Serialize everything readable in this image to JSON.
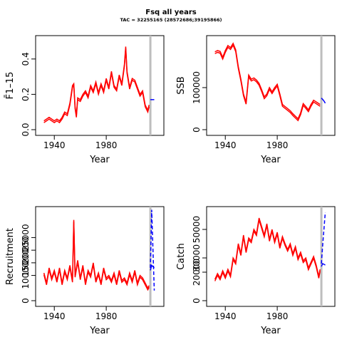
{
  "title": "Fsq all years",
  "subtitle": "TAC = 32255165 (28572686;39195866)",
  "colors": {
    "history": "#ff0000",
    "forecast": "#0000ff",
    "divider": "#bebebe",
    "axis": "#000000"
  },
  "chart_data": [
    {
      "id": "fbar",
      "type": "line",
      "xlabel": "Year",
      "ylabel": "F̄1–15",
      "xlim": [
        1930,
        2020
      ],
      "ylim": [
        0,
        0.5
      ],
      "xticks": [
        1940,
        1980
      ],
      "yticks": [
        "0.0",
        "0.2",
        "0.4"
      ],
      "divider_year": 2014,
      "series": [
        {
          "values_x": [
            1932,
            1934,
            1936,
            1938,
            1940,
            1942,
            1944,
            1946,
            1948,
            1950,
            1952,
            1954,
            1955,
            1956,
            1957,
            1958,
            1960,
            1962,
            1964,
            1966,
            1968,
            1970,
            1972,
            1974,
            1976,
            1978,
            1980,
            1982,
            1984,
            1986,
            1988,
            1990,
            1992,
            1994,
            1995,
            1996,
            1998,
            2000,
            2002,
            2004,
            2006,
            2008,
            2010,
            2012,
            2013
          ],
          "values_y": [
            0.05,
            0.06,
            0.07,
            0.06,
            0.05,
            0.06,
            0.05,
            0.07,
            0.1,
            0.09,
            0.15,
            0.25,
            0.26,
            0.13,
            0.08,
            0.18,
            0.17,
            0.2,
            0.22,
            0.19,
            0.25,
            0.22,
            0.27,
            0.21,
            0.26,
            0.22,
            0.29,
            0.24,
            0.33,
            0.25,
            0.23,
            0.31,
            0.26,
            0.37,
            0.47,
            0.33,
            0.24,
            0.29,
            0.28,
            0.24,
            0.2,
            0.22,
            0.14,
            0.11,
            0.14
          ]
        }
      ],
      "forecast": [
        {
          "values_x": [
            2014,
            2015,
            2017
          ],
          "values_y": [
            0.17,
            0.17,
            0.17
          ]
        }
      ]
    },
    {
      "id": "ssb",
      "type": "line",
      "xlabel": "Year",
      "ylabel": "SSB",
      "xlim": [
        1930,
        2020
      ],
      "ylim": [
        0,
        210000
      ],
      "xticks": [
        1940,
        1980
      ],
      "yticks": [
        "0",
        "100000"
      ],
      "ytick_values": [
        0,
        100000
      ],
      "divider_year": 2014,
      "series": [
        {
          "values_x": [
            1932,
            1934,
            1936,
            1938,
            1940,
            1942,
            1944,
            1946,
            1948,
            1950,
            1952,
            1954,
            1956,
            1958,
            1960,
            1962,
            1964,
            1966,
            1968,
            1970,
            1972,
            1974,
            1976,
            1978,
            1980,
            1982,
            1984,
            1986,
            1988,
            1990,
            1992,
            1994,
            1996,
            1998,
            2000,
            2002,
            2004,
            2006,
            2008,
            2010,
            2012,
            2013
          ],
          "values_y": [
            185000,
            188000,
            186000,
            172000,
            188000,
            200000,
            195000,
            205000,
            190000,
            150000,
            120000,
            85000,
            65000,
            130000,
            120000,
            123000,
            118000,
            110000,
            95000,
            78000,
            85000,
            100000,
            90000,
            100000,
            108000,
            85000,
            60000,
            55000,
            50000,
            45000,
            38000,
            32000,
            26000,
            40000,
            62000,
            55000,
            47000,
            60000,
            70000,
            66000,
            62000,
            60000
          ]
        }
      ],
      "forecast": [
        {
          "values_x": [
            2014,
            2015,
            2016,
            2017
          ],
          "values_y": [
            75000,
            72000,
            68000,
            63000
          ]
        }
      ]
    },
    {
      "id": "rec",
      "type": "line",
      "xlabel": "Year",
      "ylabel": "Recruitment",
      "xlim": [
        1930,
        2020
      ],
      "ylim": [
        0,
        35000
      ],
      "xticks": [
        1940,
        1980
      ],
      "yticks": [
        "0",
        "10000",
        "15000",
        "20000",
        "25000"
      ],
      "ytick_values": [
        0,
        10000,
        15000,
        20000,
        25000
      ],
      "divider_year": 2014,
      "series": [
        {
          "values_x": [
            1932,
            1934,
            1936,
            1938,
            1940,
            1942,
            1944,
            1946,
            1948,
            1950,
            1952,
            1954,
            1955,
            1956,
            1958,
            1960,
            1962,
            1964,
            1966,
            1968,
            1970,
            1972,
            1974,
            1976,
            1978,
            1980,
            1982,
            1984,
            1986,
            1988,
            1990,
            1992,
            1994,
            1996,
            1998,
            2000,
            2002,
            2004,
            2006,
            2008,
            2010,
            2012,
            2013
          ],
          "values_y": [
            11000,
            7000,
            13000,
            9000,
            12000,
            8000,
            13000,
            7000,
            12000,
            9000,
            14000,
            8000,
            32000,
            10000,
            16000,
            9000,
            14000,
            7000,
            12000,
            10000,
            15000,
            8000,
            11000,
            7000,
            13000,
            9000,
            10000,
            8000,
            11000,
            7000,
            12000,
            8000,
            9000,
            7000,
            11000,
            8000,
            12000,
            7000,
            10000,
            9000,
            7000,
            5000,
            6000
          ]
        }
      ],
      "forecast": [
        {
          "values_x": [
            2014,
            2015,
            2017
          ],
          "values_y": [
            13000,
            36000,
            4000
          ]
        },
        {
          "values_x": [
            2014,
            2015,
            2017
          ],
          "values_y": [
            12000,
            14000,
            13000
          ]
        }
      ]
    },
    {
      "id": "catch",
      "type": "line",
      "xlabel": "Year",
      "ylabel": "Catch",
      "xlim": [
        1930,
        2020
      ],
      "ylim": [
        0,
        62000
      ],
      "xticks": [
        1940,
        1980
      ],
      "yticks": [
        "0",
        "20000",
        "30000",
        "50000"
      ],
      "ytick_values": [
        0,
        20000,
        30000,
        50000
      ],
      "divider_year": 2014,
      "series": [
        {
          "values_x": [
            1932,
            1934,
            1936,
            1938,
            1940,
            1942,
            1944,
            1946,
            1948,
            1950,
            1952,
            1954,
            1956,
            1958,
            1960,
            1962,
            1964,
            1966,
            1968,
            1970,
            1972,
            1974,
            1976,
            1978,
            1980,
            1982,
            1984,
            1986,
            1988,
            1990,
            1992,
            1994,
            1996,
            1998,
            2000,
            2002,
            2004,
            2006,
            2008,
            2010,
            2012,
            2013
          ],
          "values_y": [
            15000,
            19000,
            16000,
            21000,
            17000,
            22000,
            18000,
            30000,
            27000,
            40000,
            33000,
            46000,
            35000,
            44000,
            42000,
            50000,
            47000,
            58000,
            52000,
            46000,
            54000,
            43000,
            50000,
            42000,
            48000,
            38000,
            45000,
            40000,
            36000,
            40000,
            33000,
            38000,
            30000,
            34000,
            28000,
            30000,
            23000,
            27000,
            31000,
            25000,
            17000,
            22000
          ]
        }
      ],
      "forecast": [
        {
          "values_x": [
            2014,
            2015,
            2017
          ],
          "values_y": [
            26000,
            39000,
            62000
          ]
        },
        {
          "values_x": [
            2014,
            2015,
            2017
          ],
          "values_y": [
            24000,
            26000,
            25000
          ]
        }
      ]
    }
  ]
}
